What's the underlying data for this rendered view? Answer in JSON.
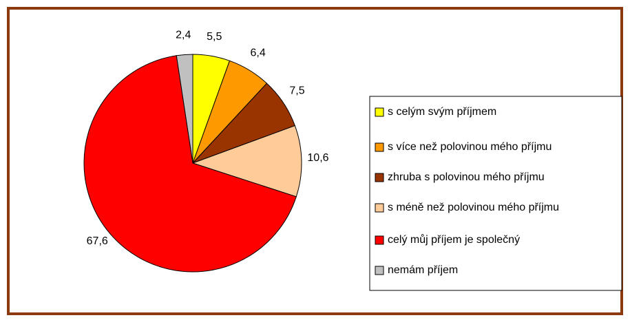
{
  "chart_data": {
    "type": "pie",
    "categories": [
      "s celým svým příjmem",
      "s více než polovinou mého příjmu",
      "zhruba s polovinou mého příjmu",
      "s méně než polovinou mého příjmu",
      "celý můj příjem je společný",
      "nemám příjem"
    ],
    "values": [
      5.5,
      6.4,
      7.5,
      10.6,
      67.6,
      2.4
    ],
    "value_labels": [
      "5,5",
      "6,4",
      "7,5",
      "10,6",
      "67,6",
      "2,4"
    ],
    "colors": [
      "#FFFF00",
      "#FF9900",
      "#993300",
      "#FFCC99",
      "#FF0000",
      "#C0C0C0"
    ],
    "legend": "right"
  }
}
